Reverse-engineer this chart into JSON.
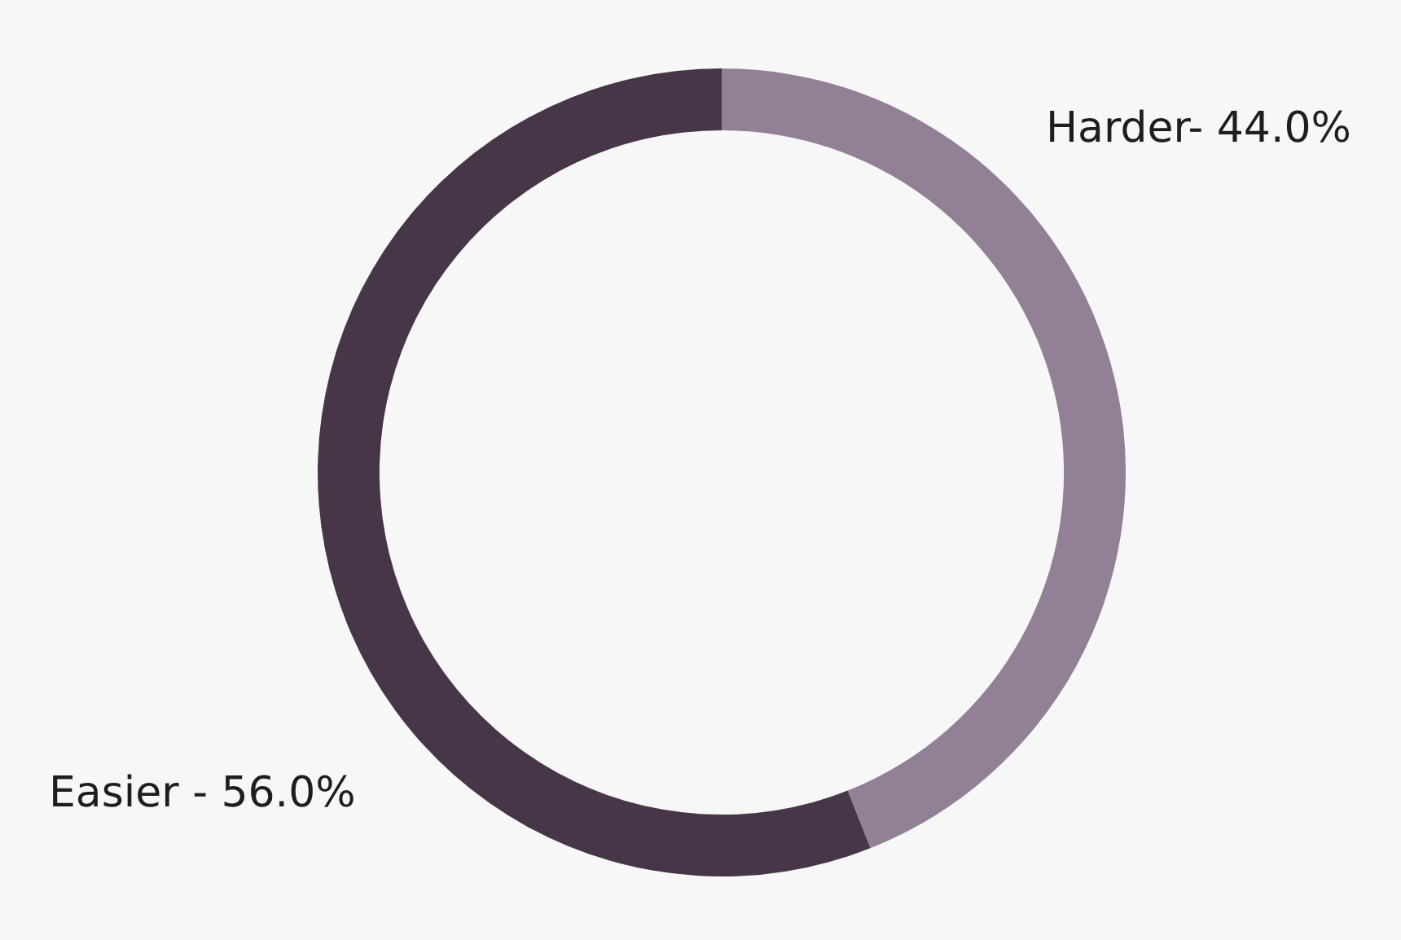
{
  "chart_data": {
    "type": "donut",
    "categories": [
      "Harder-",
      "Easier -"
    ],
    "values": [
      44.0,
      56.0
    ],
    "colors": [
      "#928196",
      "#463647"
    ],
    "value_labels": [
      "44.0%",
      "56.0%"
    ]
  }
}
